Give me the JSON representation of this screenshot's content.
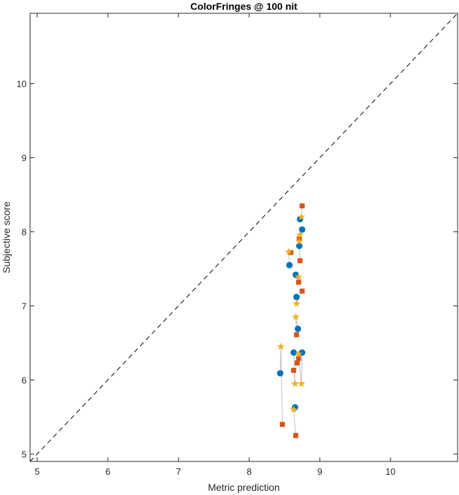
{
  "chart_data": {
    "type": "scatter",
    "title": "ColorFringes @ 100 nit",
    "xlabel": "Metric prediction",
    "ylabel": "Subjective score",
    "xlim": [
      4.9,
      10.95
    ],
    "ylim": [
      4.9,
      10.95
    ],
    "xticks": [
      5,
      6,
      7,
      8,
      9,
      10
    ],
    "yticks": [
      5,
      6,
      7,
      8,
      9,
      10
    ],
    "grid": false,
    "reference_line": {
      "style": "dashed",
      "color": "#000000",
      "from": [
        4.9,
        4.9
      ],
      "to": [
        10.95,
        10.95
      ]
    },
    "connector_color": "#bfbfbf",
    "series": [
      {
        "marker": "circle",
        "color": "#0072BD",
        "points": [
          {
            "x": 8.72,
            "y": 8.17
          },
          {
            "x": 8.75,
            "y": 8.03
          },
          {
            "x": 8.71,
            "y": 7.81
          },
          {
            "x": 8.57,
            "y": 7.55
          },
          {
            "x": 8.66,
            "y": 7.42
          },
          {
            "x": 8.67,
            "y": 7.12
          },
          {
            "x": 8.69,
            "y": 6.69
          },
          {
            "x": 8.63,
            "y": 6.37
          },
          {
            "x": 8.75,
            "y": 6.37
          },
          {
            "x": 8.44,
            "y": 6.09
          },
          {
            "x": 8.65,
            "y": 5.63
          }
        ]
      },
      {
        "marker": "square",
        "color": "#D95319",
        "points": [
          {
            "x": 8.75,
            "y": 8.35
          },
          {
            "x": 8.71,
            "y": 7.91
          },
          {
            "x": 8.59,
            "y": 7.72
          },
          {
            "x": 8.72,
            "y": 7.61
          },
          {
            "x": 8.7,
            "y": 7.32
          },
          {
            "x": 8.75,
            "y": 7.2
          },
          {
            "x": 8.67,
            "y": 6.61
          },
          {
            "x": 8.7,
            "y": 6.29
          },
          {
            "x": 8.68,
            "y": 6.23
          },
          {
            "x": 8.63,
            "y": 6.13
          },
          {
            "x": 8.47,
            "y": 5.4
          },
          {
            "x": 8.66,
            "y": 5.25
          }
        ]
      },
      {
        "marker": "star",
        "color": "#EDB120",
        "points": [
          {
            "x": 8.74,
            "y": 8.2
          },
          {
            "x": 8.72,
            "y": 7.96
          },
          {
            "x": 8.71,
            "y": 7.87
          },
          {
            "x": 8.56,
            "y": 7.73
          },
          {
            "x": 8.7,
            "y": 7.39
          },
          {
            "x": 8.67,
            "y": 7.03
          },
          {
            "x": 8.66,
            "y": 6.85
          },
          {
            "x": 8.45,
            "y": 6.45
          },
          {
            "x": 8.7,
            "y": 6.35
          },
          {
            "x": 8.65,
            "y": 5.95
          },
          {
            "x": 8.74,
            "y": 5.95
          },
          {
            "x": 8.63,
            "y": 5.6
          }
        ]
      }
    ],
    "connections": [
      [
        [
          8.72,
          8.17
        ],
        [
          8.74,
          8.2
        ],
        [
          8.75,
          8.35
        ]
      ],
      [
        [
          8.75,
          8.03
        ],
        [
          8.72,
          7.96
        ],
        [
          8.71,
          7.91
        ]
      ],
      [
        [
          8.71,
          7.81
        ],
        [
          8.71,
          7.87
        ],
        [
          8.72,
          7.61
        ]
      ],
      [
        [
          8.57,
          7.55
        ],
        [
          8.56,
          7.73
        ],
        [
          8.59,
          7.72
        ]
      ],
      [
        [
          8.66,
          7.42
        ],
        [
          8.7,
          7.39
        ],
        [
          8.7,
          7.32
        ]
      ],
      [
        [
          8.67,
          7.12
        ],
        [
          8.67,
          7.03
        ],
        [
          8.75,
          7.2
        ]
      ],
      [
        [
          8.69,
          6.69
        ],
        [
          8.66,
          6.85
        ],
        [
          8.67,
          6.61
        ]
      ],
      [
        [
          8.63,
          6.37
        ],
        [
          8.65,
          5.95
        ],
        [
          8.63,
          6.13
        ]
      ],
      [
        [
          8.75,
          6.37
        ],
        [
          8.74,
          5.95
        ],
        [
          8.7,
          6.29
        ]
      ],
      [
        [
          8.44,
          6.09
        ],
        [
          8.45,
          6.45
        ],
        [
          8.47,
          5.4
        ]
      ],
      [
        [
          8.65,
          5.63
        ],
        [
          8.63,
          5.6
        ],
        [
          8.66,
          5.25
        ]
      ]
    ]
  }
}
